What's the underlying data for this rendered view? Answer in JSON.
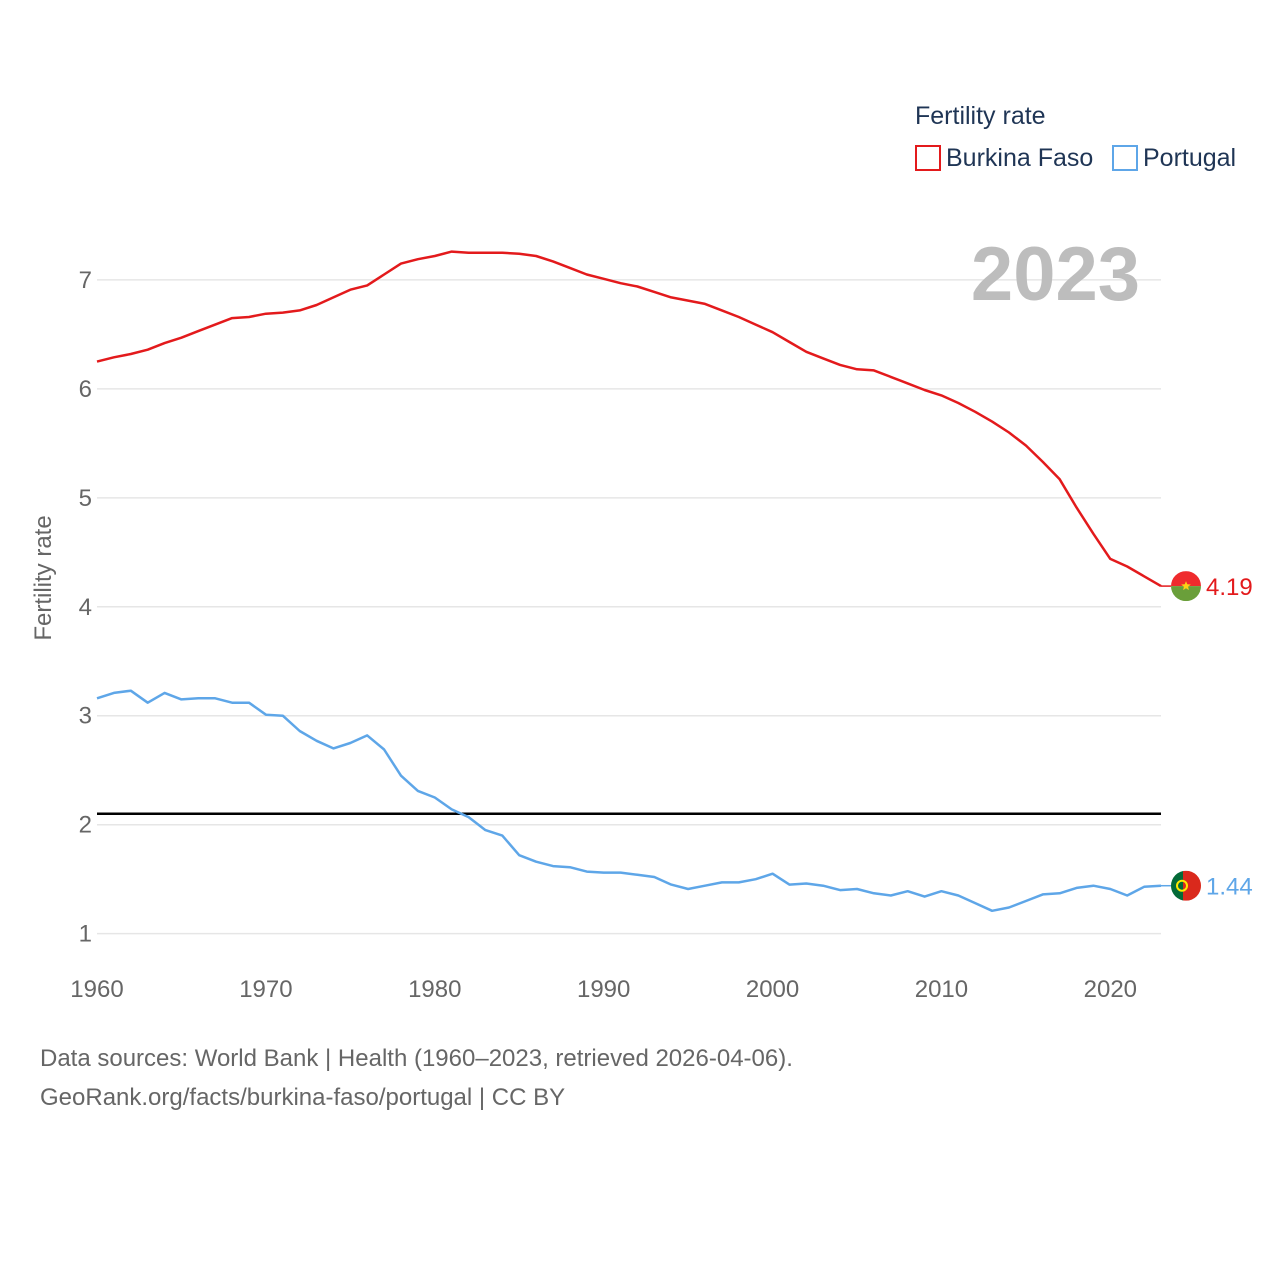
{
  "chart_data": {
    "type": "line",
    "ylabel": "Fertility rate",
    "legend_title": "Fertility rate",
    "legend_position": "top-right",
    "year_label": "2023",
    "xlim": [
      1960,
      2023
    ],
    "ylim": [
      0.85,
      7.55
    ],
    "x_ticks": [
      1960,
      1970,
      1980,
      1990,
      2000,
      2010,
      2020
    ],
    "y_ticks": [
      1,
      2,
      3,
      4,
      5,
      6,
      7
    ],
    "reference_line": {
      "value": 2.1,
      "color": "#000000"
    },
    "x": [
      1960,
      1961,
      1962,
      1963,
      1964,
      1965,
      1966,
      1967,
      1968,
      1969,
      1970,
      1971,
      1972,
      1973,
      1974,
      1975,
      1976,
      1977,
      1978,
      1979,
      1980,
      1981,
      1982,
      1983,
      1984,
      1985,
      1986,
      1987,
      1988,
      1989,
      1990,
      1991,
      1992,
      1993,
      1994,
      1995,
      1996,
      1997,
      1998,
      1999,
      2000,
      2001,
      2002,
      2003,
      2004,
      2005,
      2006,
      2007,
      2008,
      2009,
      2010,
      2011,
      2012,
      2013,
      2014,
      2015,
      2016,
      2017,
      2018,
      2019,
      2020,
      2021,
      2022,
      2023
    ],
    "series": [
      {
        "name": "Burkina Faso",
        "color": "#e31a1c",
        "end_label": "4.19",
        "values": [
          6.25,
          6.29,
          6.32,
          6.36,
          6.42,
          6.47,
          6.53,
          6.59,
          6.65,
          6.66,
          6.69,
          6.7,
          6.72,
          6.77,
          6.84,
          6.91,
          6.95,
          7.05,
          7.15,
          7.19,
          7.22,
          7.26,
          7.25,
          7.25,
          7.25,
          7.24,
          7.22,
          7.17,
          7.11,
          7.05,
          7.01,
          6.97,
          6.94,
          6.89,
          6.84,
          6.81,
          6.78,
          6.72,
          6.66,
          6.59,
          6.52,
          6.43,
          6.34,
          6.28,
          6.22,
          6.18,
          6.17,
          6.11,
          6.05,
          5.99,
          5.94,
          5.87,
          5.79,
          5.7,
          5.6,
          5.48,
          5.33,
          5.17,
          4.91,
          4.67,
          4.44,
          4.37,
          4.28,
          4.19
        ]
      },
      {
        "name": "Portugal",
        "color": "#5ea6e8",
        "end_label": "1.44",
        "values": [
          3.16,
          3.21,
          3.23,
          3.12,
          3.21,
          3.15,
          3.16,
          3.16,
          3.12,
          3.12,
          3.01,
          3.0,
          2.86,
          2.77,
          2.7,
          2.75,
          2.82,
          2.69,
          2.45,
          2.31,
          2.25,
          2.14,
          2.07,
          1.95,
          1.9,
          1.72,
          1.66,
          1.62,
          1.61,
          1.57,
          1.56,
          1.56,
          1.54,
          1.52,
          1.45,
          1.41,
          1.44,
          1.47,
          1.47,
          1.5,
          1.55,
          1.45,
          1.46,
          1.44,
          1.4,
          1.41,
          1.37,
          1.35,
          1.39,
          1.34,
          1.39,
          1.35,
          1.28,
          1.21,
          1.24,
          1.3,
          1.36,
          1.37,
          1.42,
          1.44,
          1.41,
          1.35,
          1.43,
          1.44
        ]
      }
    ]
  },
  "footer": {
    "line1": "Data sources: World Bank | Health (1960–2023, retrieved 2026-04-06).",
    "line2": "GeoRank.org/facts/burkina-faso/portugal | CC BY"
  },
  "colors": {
    "grid": "#e6e6e6",
    "tick_text": "#666666",
    "legend_text": "#1f3555",
    "year_label": "#bdbdbd"
  }
}
